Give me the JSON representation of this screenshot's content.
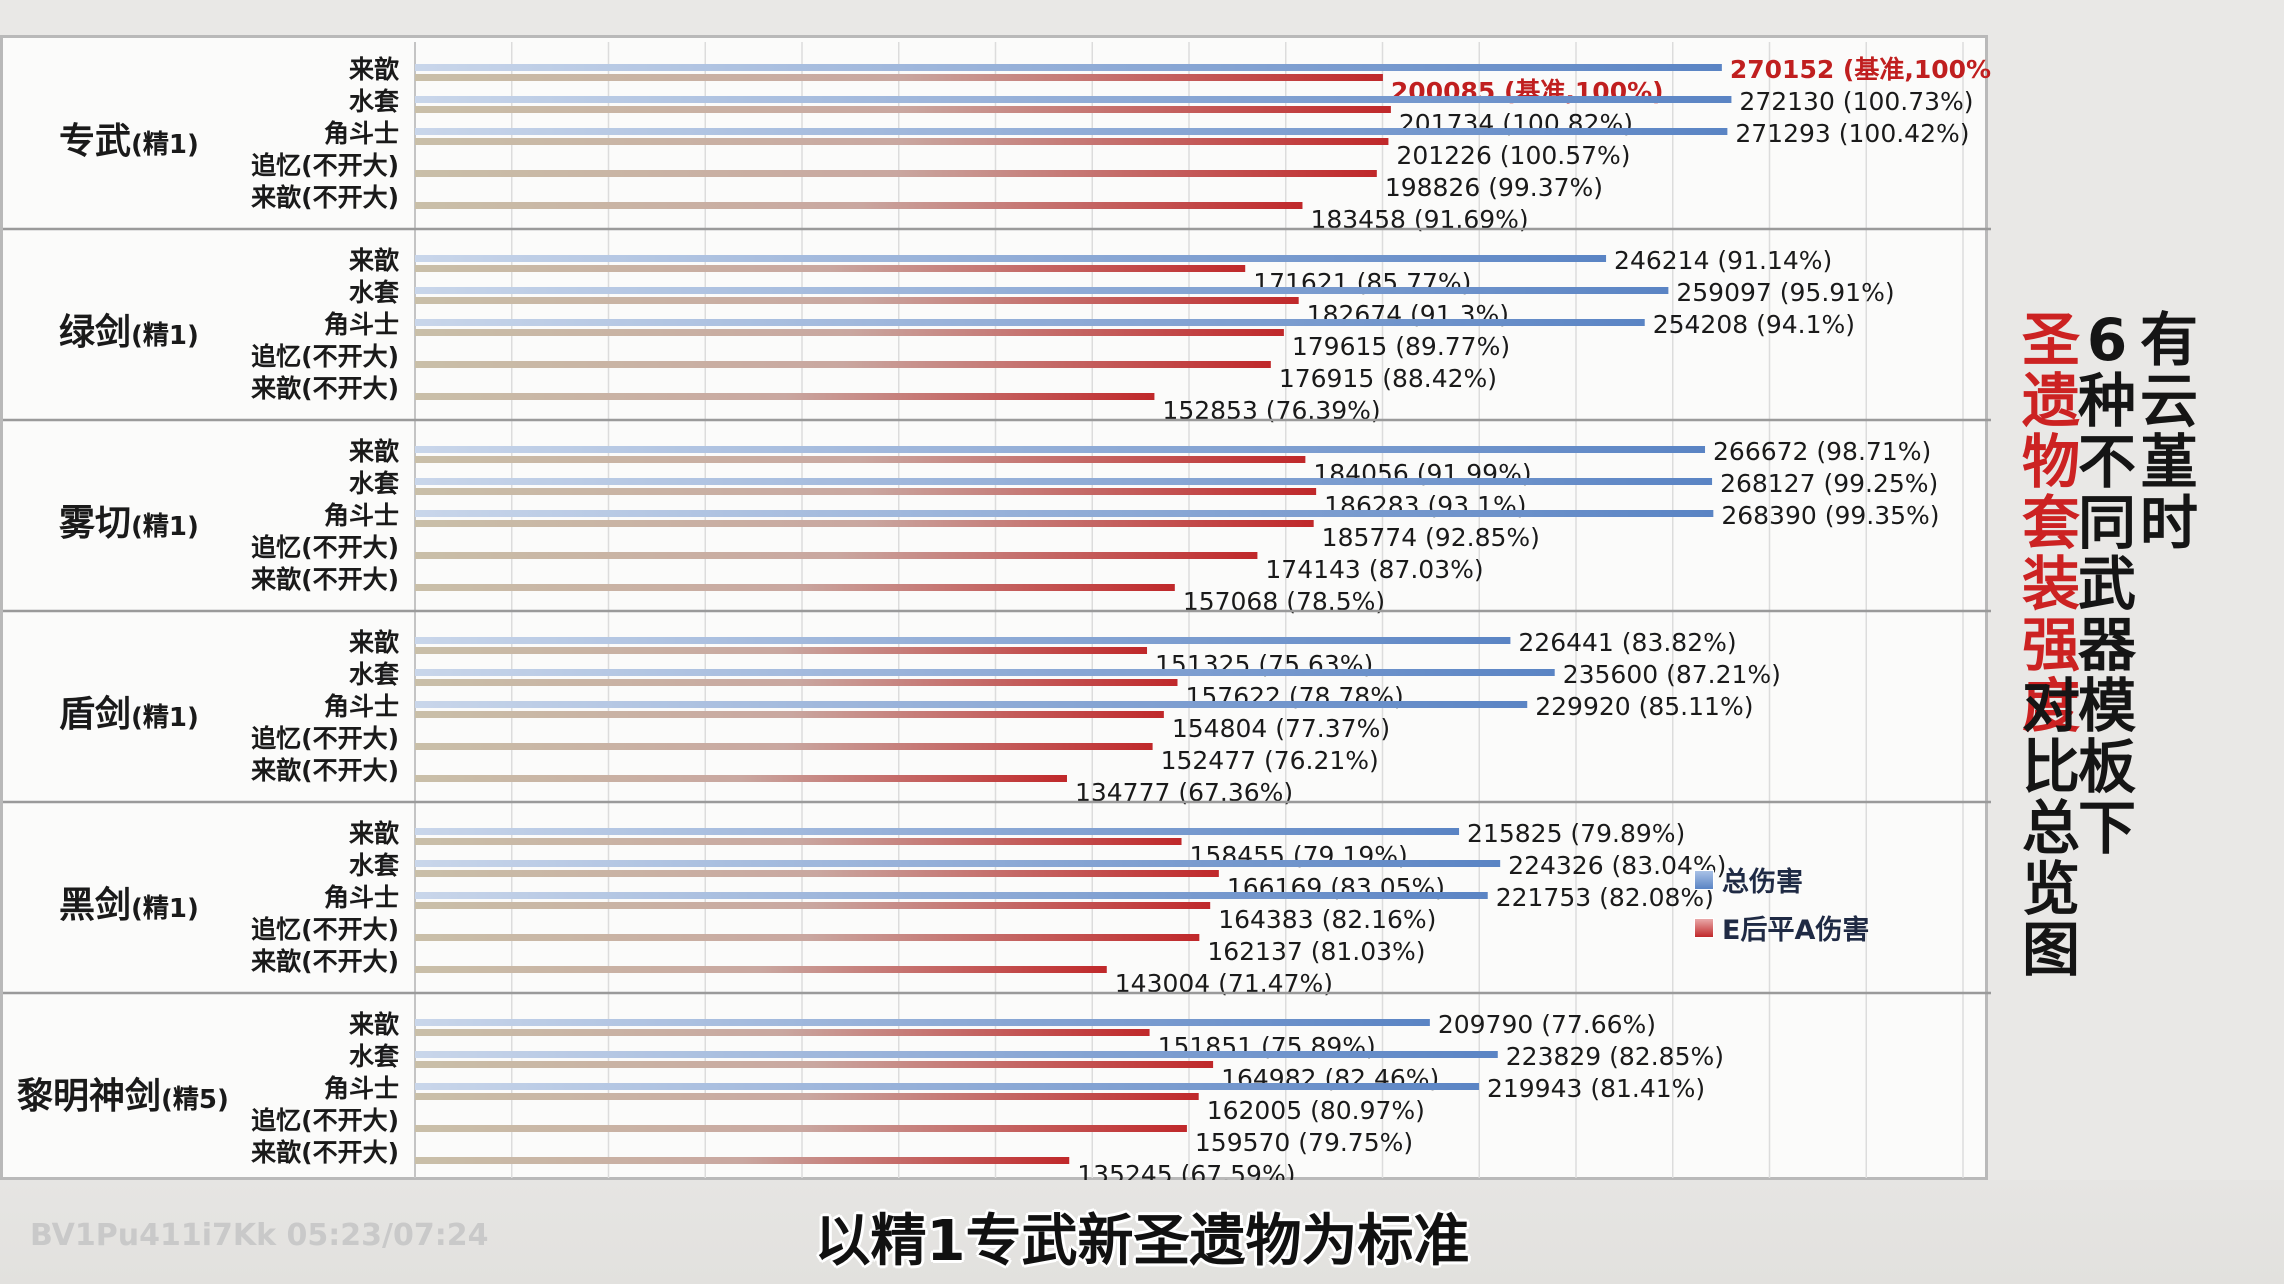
{
  "chart_data": {
    "type": "bar",
    "orientation": "horizontal",
    "title": "有云堇时6种不同武器模板下圣遗物套装强度对比总览图",
    "grid": true,
    "legend_position": "right",
    "xlim": [
      0,
      320000
    ],
    "groups": [
      {
        "weapon": "专武",
        "refine": "(精1)",
        "rows": [
          {
            "set": "来歆",
            "total": 270152,
            "total_pct": "(基准,100%)",
            "ea": 200085,
            "ea_pct": "(基准,100%)"
          },
          {
            "set": "水套",
            "total": 272130,
            "total_pct": "(100.73%)",
            "ea": 201734,
            "ea_pct": "(100.82%)"
          },
          {
            "set": "角斗士",
            "total": 271293,
            "total_pct": "(100.42%)",
            "ea": 201226,
            "ea_pct": "(100.57%)"
          },
          {
            "set": "追忆(不开大)",
            "total": null,
            "total_pct": null,
            "ea": 198826,
            "ea_pct": "(99.37%)"
          },
          {
            "set": "来歆(不开大)",
            "total": null,
            "total_pct": null,
            "ea": 183458,
            "ea_pct": "(91.69%)"
          }
        ]
      },
      {
        "weapon": "绿剑",
        "refine": "(精1)",
        "rows": [
          {
            "set": "来歆",
            "total": 246214,
            "total_pct": "(91.14%)",
            "ea": 171621,
            "ea_pct": "(85.77%)"
          },
          {
            "set": "水套",
            "total": 259097,
            "total_pct": "(95.91%)",
            "ea": 182674,
            "ea_pct": "(91.3%)"
          },
          {
            "set": "角斗士",
            "total": 254208,
            "total_pct": "(94.1%)",
            "ea": 179615,
            "ea_pct": "(89.77%)"
          },
          {
            "set": "追忆(不开大)",
            "total": null,
            "total_pct": null,
            "ea": 176915,
            "ea_pct": "(88.42%)"
          },
          {
            "set": "来歆(不开大)",
            "total": null,
            "total_pct": null,
            "ea": 152853,
            "ea_pct": "(76.39%)"
          }
        ]
      },
      {
        "weapon": "雾切",
        "refine": "(精1)",
        "rows": [
          {
            "set": "来歆",
            "total": 266672,
            "total_pct": "(98.71%)",
            "ea": 184056,
            "ea_pct": "(91.99%)"
          },
          {
            "set": "水套",
            "total": 268127,
            "total_pct": "(99.25%)",
            "ea": 186283,
            "ea_pct": "(93.1%)"
          },
          {
            "set": "角斗士",
            "total": 268390,
            "total_pct": "(99.35%)",
            "ea": 185774,
            "ea_pct": "(92.85%)"
          },
          {
            "set": "追忆(不开大)",
            "total": null,
            "total_pct": null,
            "ea": 174143,
            "ea_pct": "(87.03%)"
          },
          {
            "set": "来歆(不开大)",
            "total": null,
            "total_pct": null,
            "ea": 157068,
            "ea_pct": "(78.5%)"
          }
        ]
      },
      {
        "weapon": "盾剑",
        "refine": "(精1)",
        "rows": [
          {
            "set": "来歆",
            "total": 226441,
            "total_pct": "(83.82%)",
            "ea": 151325,
            "ea_pct": "(75.63%)"
          },
          {
            "set": "水套",
            "total": 235600,
            "total_pct": "(87.21%)",
            "ea": 157622,
            "ea_pct": "(78.78%)"
          },
          {
            "set": "角斗士",
            "total": 229920,
            "total_pct": "(85.11%)",
            "ea": 154804,
            "ea_pct": "(77.37%)"
          },
          {
            "set": "追忆(不开大)",
            "total": null,
            "total_pct": null,
            "ea": 152477,
            "ea_pct": "(76.21%)"
          },
          {
            "set": "来歆(不开大)",
            "total": null,
            "total_pct": null,
            "ea": 134777,
            "ea_pct": "(67.36%)"
          }
        ]
      },
      {
        "weapon": "黑剑",
        "refine": "(精1)",
        "rows": [
          {
            "set": "来歆",
            "total": 215825,
            "total_pct": "(79.89%)",
            "ea": 158455,
            "ea_pct": "(79.19%)"
          },
          {
            "set": "水套",
            "total": 224326,
            "total_pct": "(83.04%)",
            "ea": 166169,
            "ea_pct": "(83.05%)"
          },
          {
            "set": "角斗士",
            "total": 221753,
            "total_pct": "(82.08%)",
            "ea": 164383,
            "ea_pct": "(82.16%)"
          },
          {
            "set": "追忆(不开大)",
            "total": null,
            "total_pct": null,
            "ea": 162137,
            "ea_pct": "(81.03%)"
          },
          {
            "set": "来歆(不开大)",
            "total": null,
            "total_pct": null,
            "ea": 143004,
            "ea_pct": "(71.47%)"
          }
        ]
      },
      {
        "weapon": "黎明神剑",
        "refine": "(精5)",
        "rows": [
          {
            "set": "来歆",
            "total": 209790,
            "total_pct": "(77.66%)",
            "ea": 151851,
            "ea_pct": "(75.89%)"
          },
          {
            "set": "水套",
            "total": 223829,
            "total_pct": "(82.85%)",
            "ea": 164982,
            "ea_pct": "(82.46%)"
          },
          {
            "set": "角斗士",
            "total": 219943,
            "total_pct": "(81.41%)",
            "ea": 162005,
            "ea_pct": "(80.97%)"
          },
          {
            "set": "追忆(不开大)",
            "total": null,
            "total_pct": null,
            "ea": 159570,
            "ea_pct": "(79.75%)"
          },
          {
            "set": "来歆(不开大)",
            "total": null,
            "total_pct": null,
            "ea": 135245,
            "ea_pct": "(67.59%)"
          }
        ]
      }
    ],
    "series": [
      {
        "name": "总伤害",
        "key": "total",
        "color": "#5a84c4"
      },
      {
        "name": "E后平A伤害",
        "key": "ea",
        "color": "#c0282a"
      }
    ]
  },
  "title_columns": [
    {
      "text": "有云堇时",
      "color": "#151515"
    },
    {
      "text": "6种不同武器模板下",
      "color": "#151515"
    },
    {
      "text": "圣遗物套装强度",
      "color": "#cc2222"
    },
    {
      "text": "对比总览图",
      "color": "#151515"
    }
  ],
  "subtitle": "以精1专武新圣遗物为标准",
  "watermark": "BV1Pu411i7Kk 05:23/07:24",
  "colors": {
    "total": "#5a84c4",
    "ea": "#c0282a",
    "base_label": "#c01f1f"
  }
}
